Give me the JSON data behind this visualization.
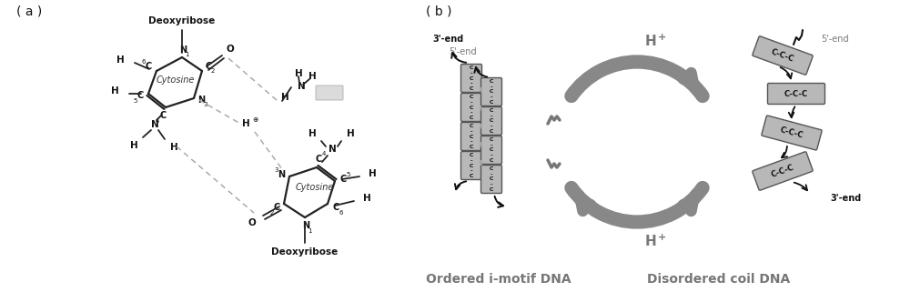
{
  "fig_width": 10.0,
  "fig_height": 3.21,
  "dpi": 100,
  "bg_color": "#ffffff",
  "panel_a_label": "( a )",
  "panel_b_label": "( b )",
  "dark": "#111111",
  "mid_gray": "#777777",
  "light_gray": "#aaaaaa",
  "box_fill": "#b8b8b8",
  "box_edge": "#555555",
  "arc_color": "#888888",
  "dashed_color": "#aaaaaa",
  "label_ordered": "Ordered i-motif DNA",
  "label_disordered": "Disordered coil DNA"
}
